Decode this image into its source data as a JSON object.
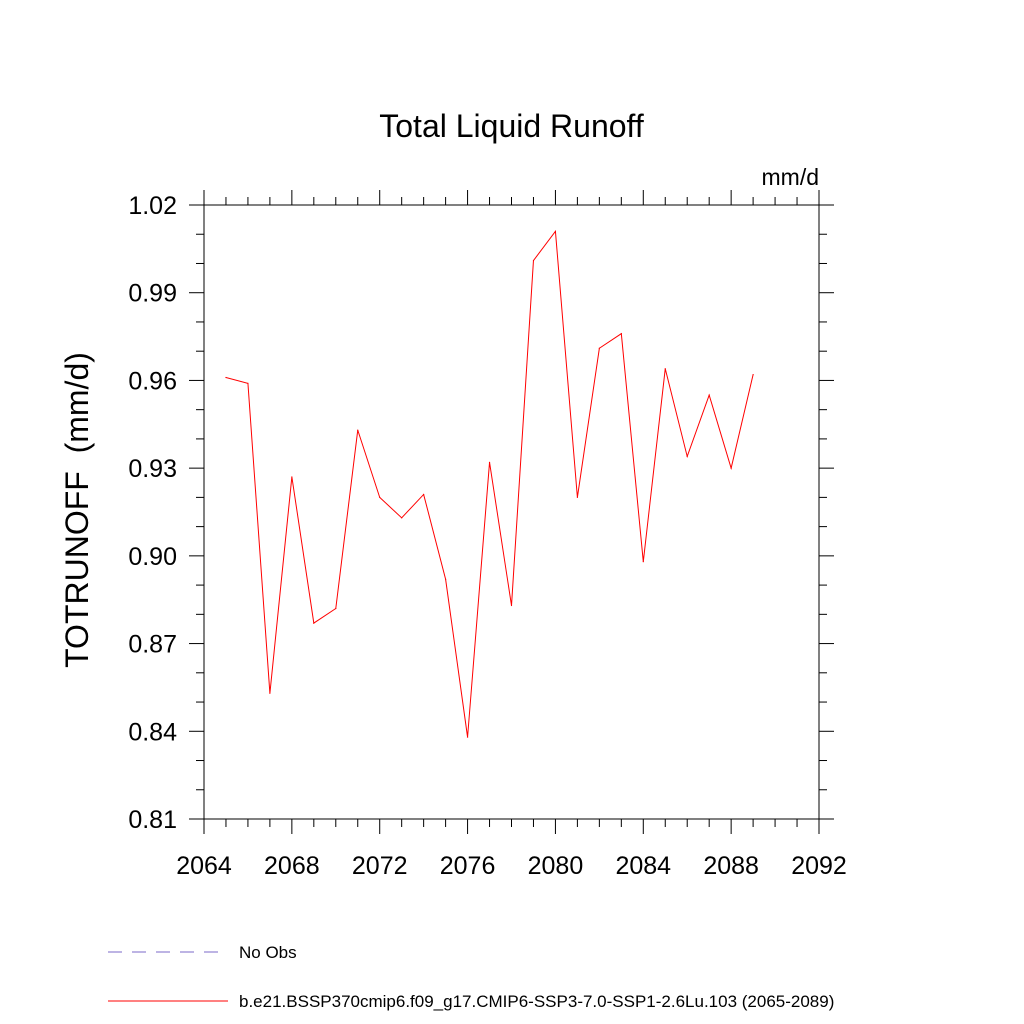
{
  "chart_data": {
    "type": "line",
    "title": "Total Liquid Runoff",
    "units": "mm/d",
    "xlabel": "",
    "ylabel": "TOTRUNOFF  (mm/d)",
    "xlim": [
      2064,
      2092
    ],
    "ylim": [
      0.81,
      1.02
    ],
    "xticks": [
      2064,
      2068,
      2072,
      2076,
      2080,
      2084,
      2088,
      2092
    ],
    "xtick_labels": [
      "2064",
      "2068",
      "2072",
      "2076",
      "2080",
      "2084",
      "2088",
      "2092"
    ],
    "yticks": [
      0.81,
      0.84,
      0.87,
      0.9,
      0.93,
      0.96,
      0.99,
      1.02
    ],
    "ytick_labels": [
      "0.81",
      "0.84",
      "0.87",
      "0.90",
      "0.93",
      "0.96",
      "0.99",
      "1.02"
    ],
    "x_minor_step": 1,
    "y_minor_step": 0.01,
    "grid": false,
    "legend_position": "bottom-left",
    "series": [
      {
        "name": "b.e21.BSSP370cmip6.f09_g17.CMIP6-SSP3-7.0-SSP1-2.6Lu.103 (2065-2089)",
        "color": "#ff0000",
        "style": "solid",
        "x": [
          2065,
          2066,
          2067,
          2068,
          2069,
          2070,
          2071,
          2072,
          2073,
          2074,
          2075,
          2076,
          2077,
          2078,
          2079,
          2080,
          2081,
          2082,
          2083,
          2084,
          2085,
          2086,
          2087,
          2088,
          2089
        ],
        "values": [
          0.961,
          0.959,
          0.853,
          0.927,
          0.877,
          0.882,
          0.943,
          0.92,
          0.913,
          0.921,
          0.892,
          0.838,
          0.932,
          0.883,
          1.001,
          1.011,
          0.92,
          0.971,
          0.976,
          0.898,
          0.964,
          0.934,
          0.955,
          0.93,
          0.962
        ]
      }
    ],
    "legend": [
      {
        "label": "No Obs",
        "color": "#7b68c8",
        "style": "dashed"
      },
      {
        "label": "b.e21.BSSP370cmip6.f09_g17.CMIP6-SSP3-7.0-SSP1-2.6Lu.103 (2065-2089)",
        "color": "#ff0000",
        "style": "solid"
      }
    ]
  }
}
